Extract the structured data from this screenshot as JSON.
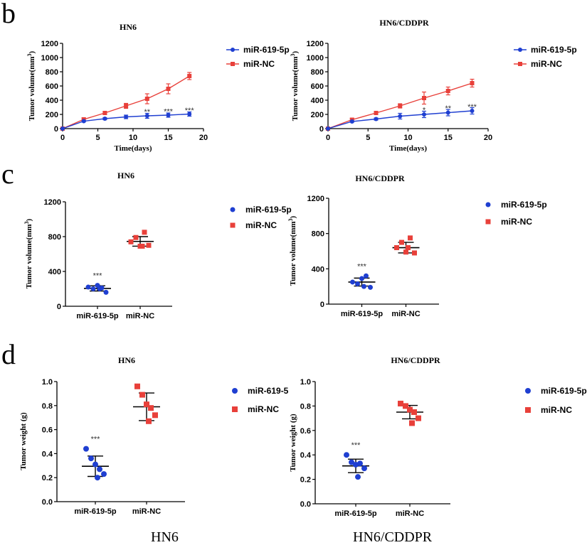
{
  "colors": {
    "blue": "#1f3fd1",
    "red": "#e8403a",
    "axis": "#000000"
  },
  "panel_labels": [
    "b",
    "c",
    "d"
  ],
  "bottom_captions": [
    "HN6",
    "HN6/CDDPR"
  ],
  "chart_data": [
    {
      "type": "line",
      "panel": "b",
      "title": "HN6",
      "xlabel": "Time(days)",
      "ylabel": "Tumor volume(mm3)",
      "xlim": [
        0,
        20
      ],
      "ylim": [
        0,
        1200
      ],
      "xticks": [
        "0",
        "5",
        "10",
        "15",
        "20"
      ],
      "yticks": [
        "0",
        "200",
        "400",
        "600",
        "800",
        "1000",
        "1200"
      ],
      "x": [
        0,
        3,
        6,
        9,
        12,
        15,
        18
      ],
      "series": [
        {
          "name": "miR-619-5p",
          "color": "blue",
          "values": [
            0,
            105,
            140,
            165,
            180,
            190,
            205
          ],
          "err": [
            0,
            10,
            15,
            25,
            35,
            30,
            30
          ]
        },
        {
          "name": "miR-NC",
          "color": "red",
          "values": [
            0,
            130,
            220,
            320,
            420,
            560,
            740
          ],
          "err": [
            0,
            20,
            20,
            35,
            70,
            70,
            50
          ]
        }
      ],
      "annotations": [
        {
          "x": 12,
          "text": "**",
          "y": 240
        },
        {
          "x": 15,
          "text": "***",
          "y": 245
        },
        {
          "x": 18,
          "text": "***",
          "y": 260
        }
      ]
    },
    {
      "type": "line",
      "panel": "b",
      "title": "HN6/CDDPR",
      "xlabel": "Time(days)",
      "ylabel": "Tumor volume(mm3)",
      "xlim": [
        0,
        20
      ],
      "ylim": [
        0,
        1200
      ],
      "xticks": [
        "0",
        "5",
        "10",
        "15",
        "20"
      ],
      "yticks": [
        "0",
        "200",
        "400",
        "600",
        "800",
        "1000",
        "1200"
      ],
      "x": [
        0,
        3,
        6,
        9,
        12,
        15,
        18
      ],
      "series": [
        {
          "name": "miR-619-5p",
          "color": "blue",
          "values": [
            0,
            100,
            135,
            175,
            200,
            225,
            250
          ],
          "err": [
            0,
            10,
            15,
            40,
            45,
            45,
            45
          ]
        },
        {
          "name": "miR-NC",
          "color": "red",
          "values": [
            0,
            125,
            220,
            320,
            430,
            530,
            640
          ],
          "err": [
            0,
            20,
            20,
            30,
            85,
            55,
            55
          ]
        }
      ],
      "annotations": [
        {
          "x": 12,
          "text": "*",
          "y": 265
        },
        {
          "x": 15,
          "text": "**",
          "y": 290
        },
        {
          "x": 18,
          "text": "***",
          "y": 310
        }
      ]
    },
    {
      "type": "scatter",
      "panel": "c",
      "title": "HN6",
      "xlabel": "",
      "ylabel": "Tumor volume(mm3)",
      "ylim": [
        0,
        1200
      ],
      "yticks": [
        "0",
        "400",
        "800",
        "1200"
      ],
      "categories": [
        "miR-619-5p",
        "miR-NC"
      ],
      "series": [
        {
          "name": "miR-619-5p",
          "color": "blue",
          "marker": "circle",
          "points": [
            220,
            200,
            240,
            210,
            160,
            200
          ],
          "mean": 205,
          "sd": 30
        },
        {
          "name": "miR-NC",
          "color": "red",
          "marker": "square",
          "points": [
            740,
            790,
            690,
            850,
            700,
            690
          ],
          "mean": 745,
          "sd": 55
        }
      ],
      "annotations": [
        {
          "category": "miR-619-5p",
          "text": "***"
        }
      ]
    },
    {
      "type": "scatter",
      "panel": "c",
      "title": "HN6/CDDPR",
      "xlabel": "",
      "ylabel": "Tumor volume(mm3)",
      "ylim": [
        0,
        1200
      ],
      "yticks": [
        "0",
        "400",
        "800",
        "1200"
      ],
      "categories": [
        "miR-619-5p",
        "miR-NC"
      ],
      "series": [
        {
          "name": "miR-619-5p",
          "color": "blue",
          "marker": "circle",
          "points": [
            250,
            230,
            290,
            320,
            190,
            200
          ],
          "mean": 250,
          "sd": 45
        },
        {
          "name": "miR-NC",
          "color": "red",
          "marker": "square",
          "points": [
            640,
            700,
            590,
            750,
            580,
            640
          ],
          "mean": 640,
          "sd": 60
        }
      ],
      "annotations": [
        {
          "category": "miR-619-5p",
          "text": "***"
        }
      ]
    },
    {
      "type": "scatter",
      "panel": "d",
      "title": "HN6",
      "xlabel": "",
      "ylabel": "Tumor weight (g)",
      "ylim": [
        0,
        1.0
      ],
      "yticks": [
        "0.0",
        "0.2",
        "0.4",
        "0.6",
        "0.8",
        "1.0"
      ],
      "categories": [
        "miR-619-5p",
        "miR-NC"
      ],
      "legend_labels": [
        "miR-619-5",
        "miR-NC"
      ],
      "series": [
        {
          "name": "miR-619-5p",
          "color": "blue",
          "marker": "circle",
          "points": [
            0.44,
            0.36,
            0.31,
            0.27,
            0.23,
            0.2
          ],
          "mean": 0.295,
          "sd": 0.085
        },
        {
          "name": "miR-NC",
          "color": "red",
          "marker": "square",
          "points": [
            0.96,
            0.89,
            0.81,
            0.78,
            0.72,
            0.67
          ],
          "mean": 0.79,
          "sd": 0.115
        }
      ],
      "annotations": [
        {
          "category": "miR-619-5p",
          "text": "***"
        }
      ]
    },
    {
      "type": "scatter",
      "panel": "d",
      "title": "HN6/CDDPR",
      "xlabel": "",
      "ylabel": "Tumor weight (g)",
      "ylim": [
        0,
        1.0
      ],
      "yticks": [
        "0.0",
        "0.2",
        "0.4",
        "0.6",
        "0.8",
        "1.0"
      ],
      "categories": [
        "miR-619-5p",
        "miR-NC"
      ],
      "legend_labels": [
        "miR-619-5p",
        "miR-NC"
      ],
      "series": [
        {
          "name": "miR-619-5p",
          "color": "blue",
          "marker": "circle",
          "points": [
            0.4,
            0.34,
            0.32,
            0.33,
            0.29,
            0.22
          ],
          "mean": 0.31,
          "sd": 0.055
        },
        {
          "name": "miR-NC",
          "color": "red",
          "marker": "square",
          "points": [
            0.82,
            0.8,
            0.77,
            0.75,
            0.7,
            0.66
          ],
          "mean": 0.75,
          "sd": 0.055
        }
      ],
      "annotations": [
        {
          "category": "miR-619-5p",
          "text": "***"
        }
      ]
    }
  ]
}
